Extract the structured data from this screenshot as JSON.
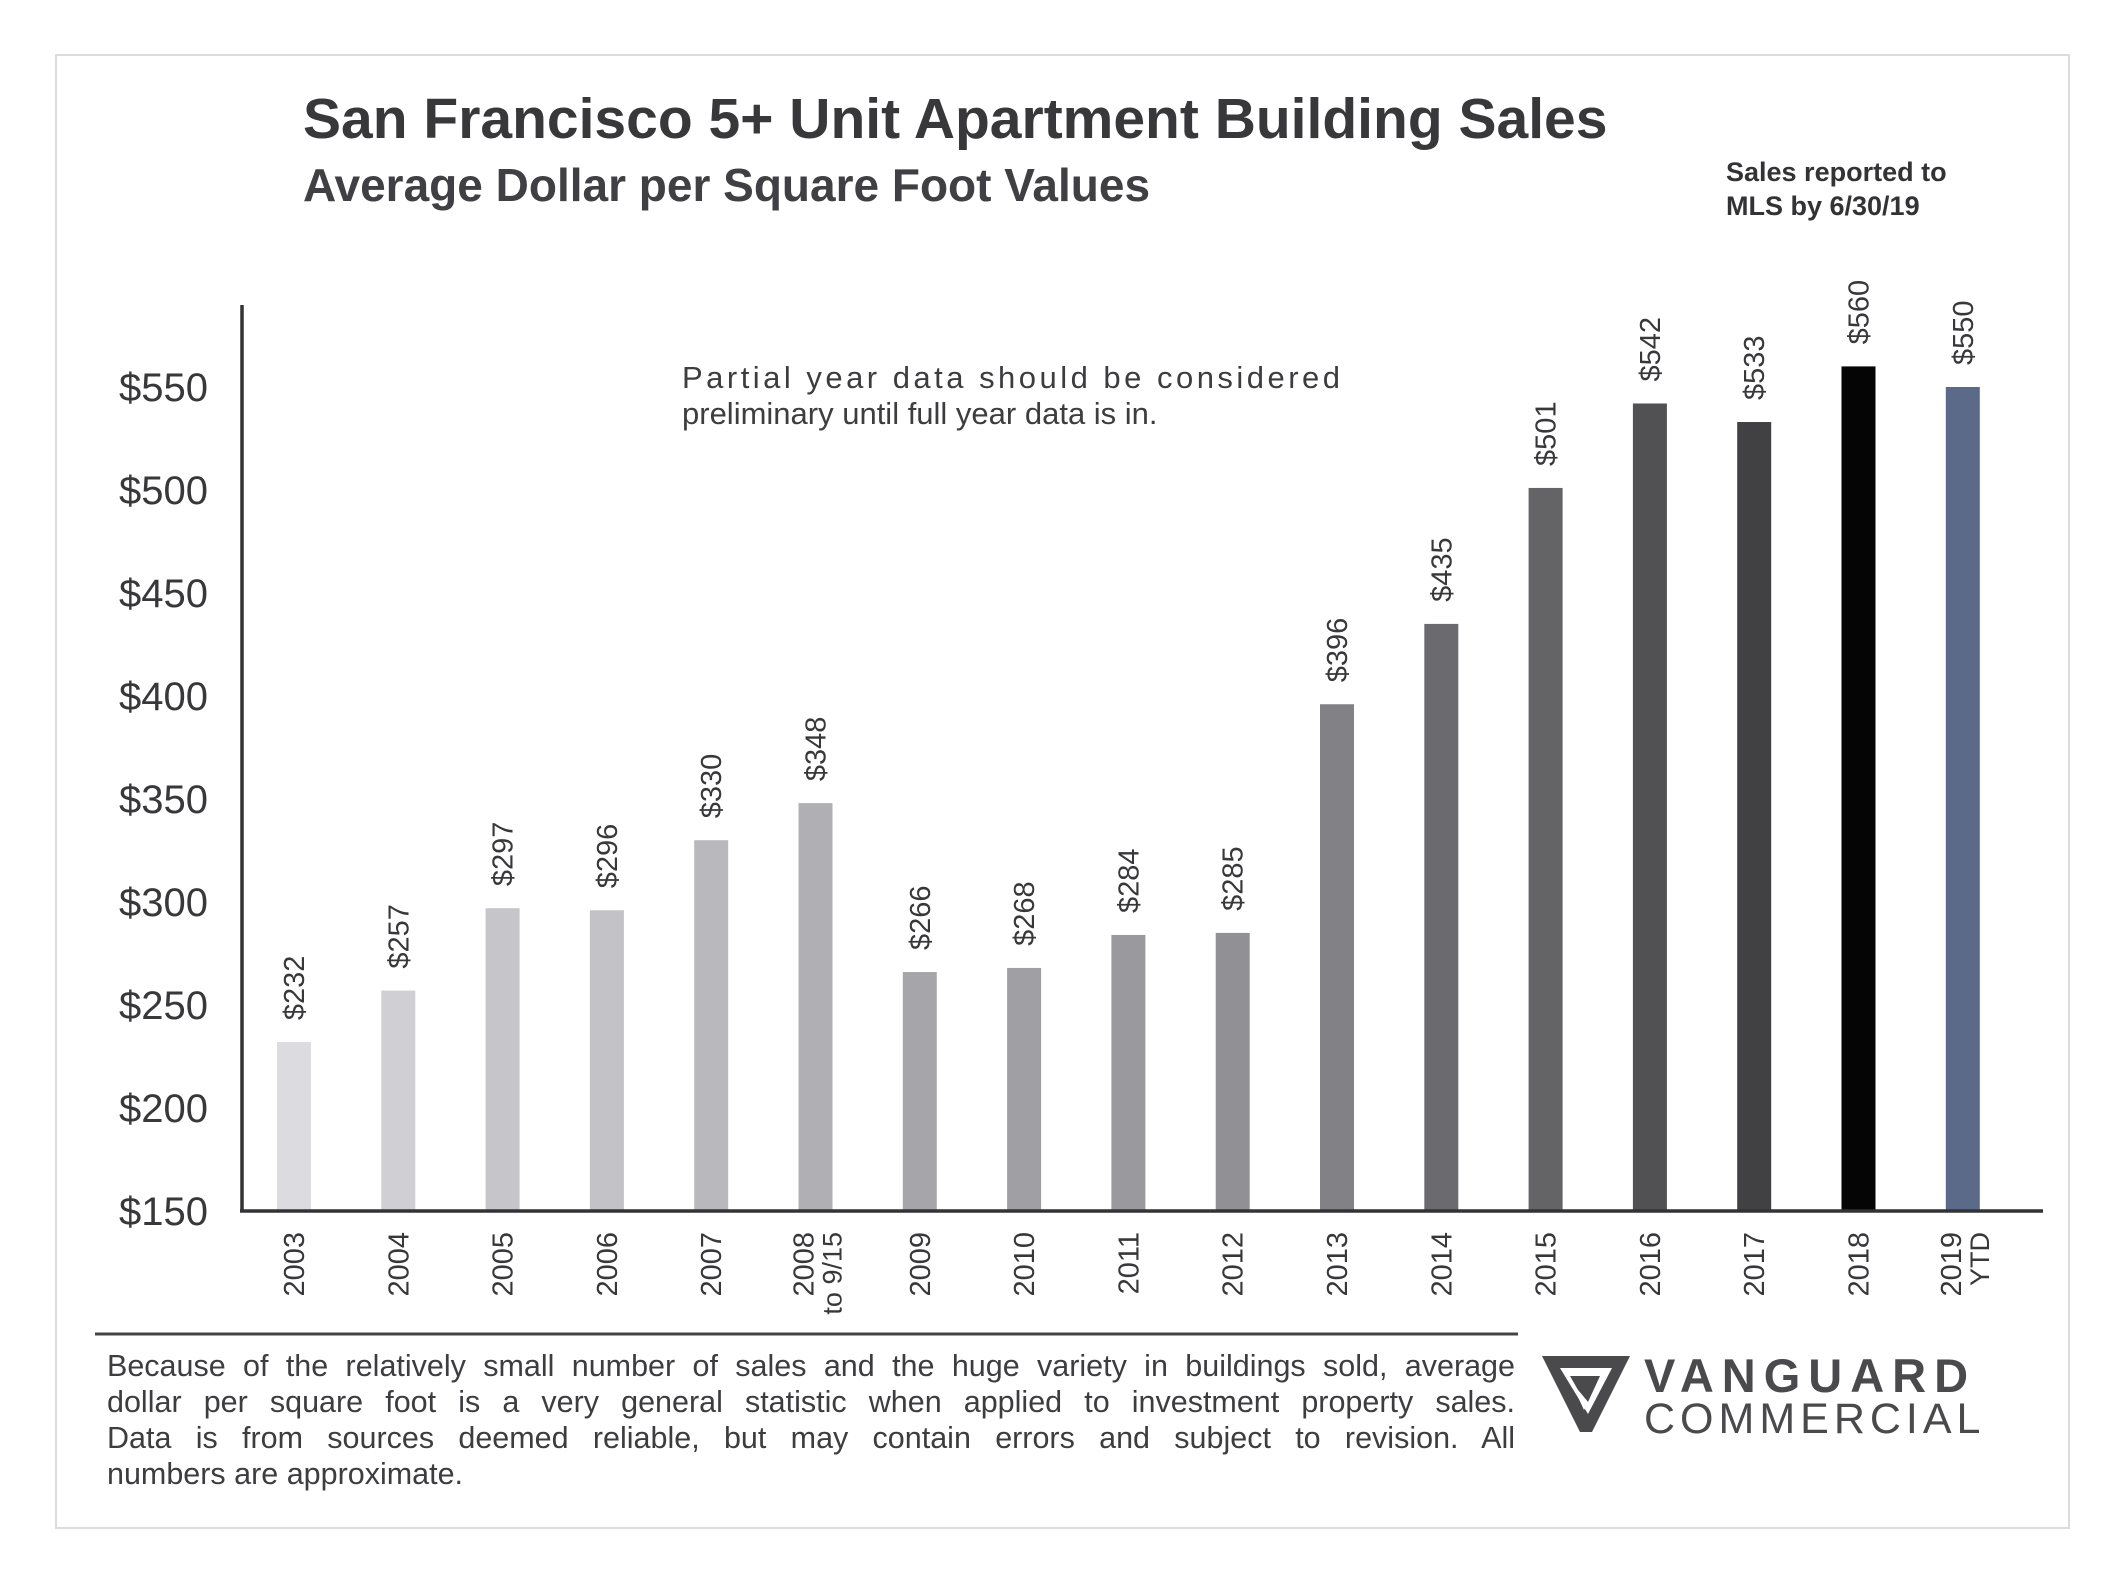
{
  "chart_data": {
    "type": "bar",
    "title": "San Francisco 5+ Unit Apartment Building Sales",
    "subtitle": "Average Dollar per Square Foot Values",
    "xlabel": "",
    "ylabel": "",
    "ylim": [
      150,
      575
    ],
    "yticks": [
      150,
      200,
      250,
      300,
      350,
      400,
      450,
      500,
      550
    ],
    "ytick_labels": [
      "$150",
      "$200",
      "$250",
      "$300",
      "$350",
      "$400",
      "$450",
      "$500",
      "$550"
    ],
    "grid": false,
    "categories": [
      {
        "line1": "2003",
        "line2": ""
      },
      {
        "line1": "2004",
        "line2": ""
      },
      {
        "line1": "2005",
        "line2": ""
      },
      {
        "line1": "2006",
        "line2": ""
      },
      {
        "line1": "2007",
        "line2": ""
      },
      {
        "line1": "2008",
        "line2": "to 9/15"
      },
      {
        "line1": "2009",
        "line2": ""
      },
      {
        "line1": "2010",
        "line2": ""
      },
      {
        "line1": "2011",
        "line2": ""
      },
      {
        "line1": "2012",
        "line2": ""
      },
      {
        "line1": "2013",
        "line2": ""
      },
      {
        "line1": "2014",
        "line2": ""
      },
      {
        "line1": "2015",
        "line2": ""
      },
      {
        "line1": "2016",
        "line2": ""
      },
      {
        "line1": "2017",
        "line2": ""
      },
      {
        "line1": "2018",
        "line2": ""
      },
      {
        "line1": "2019",
        "line2": "YTD"
      }
    ],
    "values": [
      232,
      257,
      297,
      296,
      330,
      348,
      266,
      268,
      284,
      285,
      396,
      435,
      501,
      542,
      533,
      560,
      550
    ],
    "value_labels": [
      "$232",
      "$257",
      "$297",
      "$296",
      "$330",
      "$348",
      "$266",
      "$268",
      "$284",
      "$285",
      "$396",
      "$435",
      "$501",
      "$542",
      "$533",
      "$560",
      "$550"
    ],
    "bar_colors": [
      "#dcdce0",
      "#d0d0d4",
      "#c6c6ca",
      "#c3c3c7",
      "#b9b9bd",
      "#b0b0b4",
      "#a6a6aa",
      "#a0a0a4",
      "#9a9a9e",
      "#919195",
      "#828286",
      "#6b6b6f",
      "#646467",
      "#515154",
      "#414144",
      "#050505",
      "#5a6a88"
    ],
    "annotation": [
      "Partial year data should be considered",
      "preliminary until full year data is in."
    ]
  },
  "sales_note": [
    "Sales reported to",
    "MLS by 6/30/19"
  ],
  "footer": {
    "lines": [
      "Because of the relatively small number of sales and the huge variety in buildings sold, average",
      "dollar per square foot is a very general statistic when applied to investment property sales.",
      "Data is from sources deemed reliable, but may contain errors and subject to revision. All",
      "numbers are approximate."
    ]
  },
  "logo": {
    "line1": "VANGUARD",
    "line2": "COMMERCIAL",
    "icon": "vanguard-v-logo-icon",
    "color": "#4a4a4d"
  }
}
